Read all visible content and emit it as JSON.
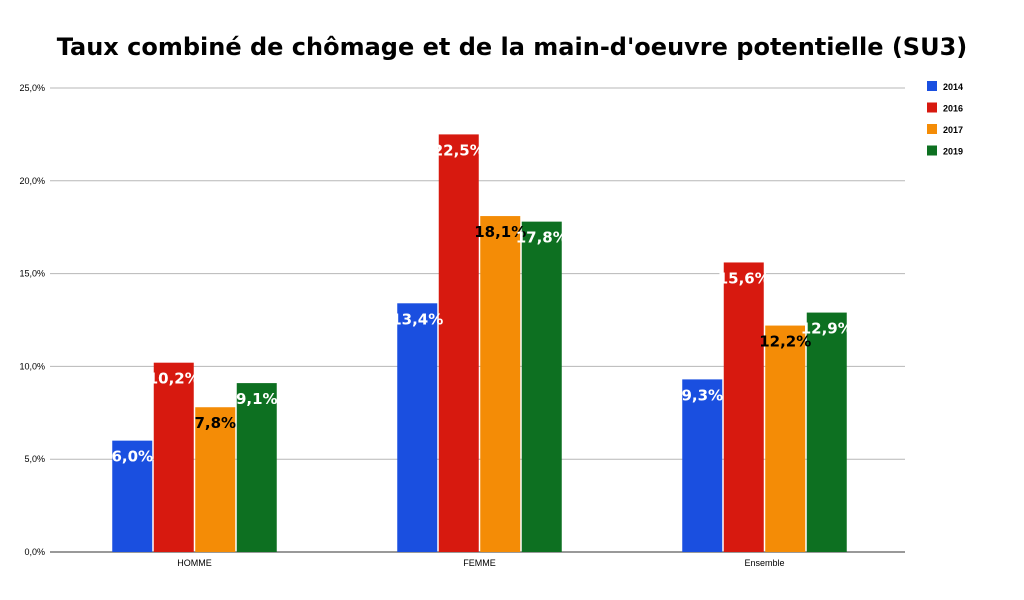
{
  "chart_data": {
    "type": "bar",
    "title": "Taux combiné de chômage et de la main-d'oeuvre potentielle (SU3)",
    "xlabel": "",
    "ylabel": "",
    "categories": [
      "HOMME",
      "FEMME",
      "Ensemble"
    ],
    "series": [
      {
        "name": "2014",
        "color": "#1a4fe0",
        "label_color": "#ffffff",
        "values": [
          6.0,
          13.4,
          9.3
        ],
        "labels": [
          "6,0%",
          "13,4%",
          "9,3%"
        ]
      },
      {
        "name": "2016",
        "color": "#d7190f",
        "label_color": "#ffffff",
        "values": [
          10.2,
          22.5,
          15.6
        ],
        "labels": [
          "10,2%",
          "22,5%",
          "15,6%"
        ]
      },
      {
        "name": "2017",
        "color": "#f48c06",
        "label_color": "#000000",
        "values": [
          7.8,
          18.1,
          12.2
        ],
        "labels": [
          "7,8%",
          "18,1%",
          "12,2%"
        ]
      },
      {
        "name": "2019",
        "color": "#0d7021",
        "label_color": "#ffffff",
        "values": [
          9.1,
          17.8,
          12.9
        ],
        "labels": [
          "9,1%",
          "17,8%",
          "12,9%"
        ]
      }
    ],
    "ylim": [
      0,
      25
    ],
    "yticks": [
      0,
      5,
      10,
      15,
      20,
      25
    ],
    "ytick_labels": [
      "0,0%",
      "5,0%",
      "10,0%",
      "15,0%",
      "20,0%",
      "25,0%"
    ],
    "grid": true,
    "legend_position": "top-right"
  }
}
